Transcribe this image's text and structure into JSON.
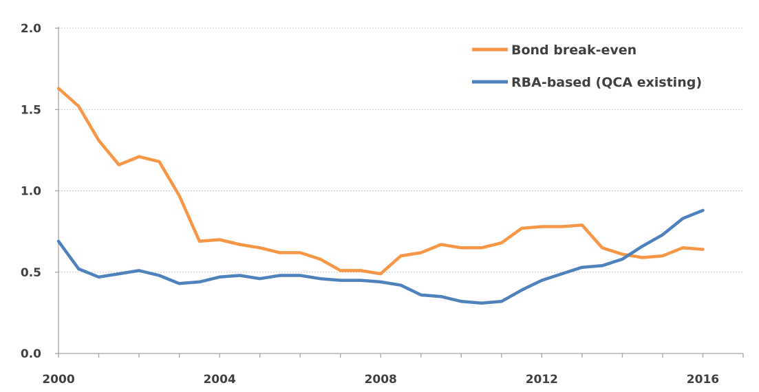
{
  "chart_data": {
    "type": "line",
    "title": "",
    "xlabel": "",
    "ylabel": "",
    "xlim": [
      2000,
      2017
    ],
    "ylim": [
      0.0,
      2.0
    ],
    "x_ticks": [
      2000,
      2004,
      2008,
      2012,
      2016
    ],
    "y_ticks": [
      0.0,
      0.5,
      1.0,
      1.5,
      2.0
    ],
    "y_tick_labels": [
      "0.0",
      "0.5",
      "1.0",
      "1.5",
      "2.0"
    ],
    "x_tick_labels": [
      "2000",
      "2004",
      "2008",
      "2012",
      "2016"
    ],
    "grid": "horizontal dashed",
    "legend_position": "top-right",
    "x": [
      2000,
      2000.5,
      2001,
      2001.5,
      2002,
      2002.5,
      2003,
      2003.5,
      2004,
      2004.5,
      2005,
      2005.5,
      2006,
      2006.5,
      2007,
      2007.5,
      2008,
      2008.5,
      2009,
      2009.5,
      2010,
      2010.5,
      2011,
      2011.5,
      2012,
      2012.5,
      2013,
      2013.5,
      2014,
      2014.5,
      2015,
      2015.5,
      2016
    ],
    "series": [
      {
        "name": "Bond break-even",
        "color": "#f79646",
        "values": [
          1.63,
          1.52,
          1.31,
          1.16,
          1.21,
          1.18,
          0.97,
          0.69,
          0.7,
          0.67,
          0.65,
          0.62,
          0.62,
          0.58,
          0.51,
          0.51,
          0.49,
          0.6,
          0.62,
          0.67,
          0.65,
          0.65,
          0.68,
          0.77,
          0.78,
          0.78,
          0.79,
          0.65,
          0.61,
          0.59,
          0.6,
          0.65,
          0.64
        ]
      },
      {
        "name": "RBA-based (QCA existing)",
        "color": "#4f81bd",
        "values": [
          0.69,
          0.52,
          0.47,
          0.49,
          0.51,
          0.48,
          0.43,
          0.44,
          0.47,
          0.48,
          0.46,
          0.48,
          0.48,
          0.46,
          0.45,
          0.45,
          0.44,
          0.42,
          0.36,
          0.35,
          0.32,
          0.31,
          0.32,
          0.39,
          0.45,
          0.49,
          0.53,
          0.54,
          0.58,
          0.66,
          0.73,
          0.83,
          0.88
        ]
      }
    ]
  }
}
